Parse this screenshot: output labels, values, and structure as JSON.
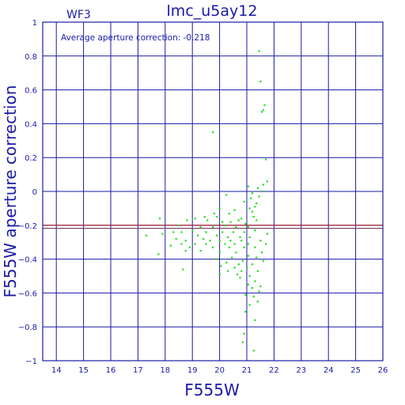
{
  "colors": {
    "axis": "#1a1aa6",
    "points": "#22dd22",
    "ref_line_1": "#b22222",
    "ref_line_2": "#7a4a6a"
  },
  "chart_data": {
    "type": "scatter",
    "title": "lmc_u5ay12",
    "chip_label": "WF3",
    "annotation": "Average aperture correction: -0.218",
    "xlabel": "F555W",
    "ylabel": "F555W aperture correction",
    "xlim": [
      13.5,
      26
    ],
    "ylim": [
      -1,
      1
    ],
    "grid": true,
    "x_ticks": [
      14,
      15,
      16,
      17,
      18,
      19,
      20,
      21,
      22,
      23,
      24,
      25,
      26
    ],
    "y_ticks": [
      -1,
      -0.8,
      -0.6,
      -0.4,
      -0.2,
      0,
      0.2,
      0.4,
      0.6,
      0.8,
      1
    ],
    "x_tick_labels": [
      "14",
      "15",
      "16",
      "17",
      "18",
      "19",
      "20",
      "21",
      "22",
      "23",
      "24",
      "25",
      "26"
    ],
    "y_tick_labels": [
      "−1",
      "−0.8",
      "−0.6",
      "−0.4",
      "−0.2",
      "0",
      "0.2",
      "0.4",
      "0.6",
      "0.8",
      "1"
    ],
    "reference_lines": [
      -0.2,
      -0.218
    ],
    "points": [
      [
        21.45,
        0.83
      ],
      [
        21.5,
        0.65
      ],
      [
        21.65,
        0.51
      ],
      [
        21.6,
        0.48
      ],
      [
        21.55,
        0.47
      ],
      [
        19.75,
        0.35
      ],
      [
        21.7,
        0.19
      ],
      [
        21.75,
        0.06
      ],
      [
        21.6,
        0.04
      ],
      [
        21.05,
        0.03
      ],
      [
        21.4,
        0.02
      ],
      [
        21.55,
        0.0
      ],
      [
        21.2,
        -0.01
      ],
      [
        21.45,
        -0.03
      ],
      [
        21.15,
        -0.04
      ],
      [
        20.25,
        -0.02
      ],
      [
        20.9,
        -0.06
      ],
      [
        21.35,
        -0.07
      ],
      [
        21.3,
        -0.09
      ],
      [
        21.1,
        -0.1
      ],
      [
        21.2,
        -0.12
      ],
      [
        20.0,
        -0.1
      ],
      [
        20.55,
        -0.11
      ],
      [
        20.35,
        -0.13
      ],
      [
        19.8,
        -0.13
      ],
      [
        19.9,
        -0.15
      ],
      [
        19.45,
        -0.15
      ],
      [
        20.8,
        -0.16
      ],
      [
        21.25,
        -0.15
      ],
      [
        19.1,
        -0.16
      ],
      [
        18.8,
        -0.17
      ],
      [
        17.8,
        -0.16
      ],
      [
        18.5,
        -0.2
      ],
      [
        19.55,
        -0.17
      ],
      [
        20.1,
        -0.18
      ],
      [
        20.4,
        -0.18
      ],
      [
        20.7,
        -0.17
      ],
      [
        20.95,
        -0.19
      ],
      [
        21.35,
        -0.17
      ],
      [
        20.2,
        -0.2
      ],
      [
        19.3,
        -0.21
      ],
      [
        19.75,
        -0.21
      ],
      [
        20.6,
        -0.21
      ],
      [
        21.05,
        -0.21
      ],
      [
        21.3,
        -0.23
      ],
      [
        19.0,
        -0.23
      ],
      [
        19.5,
        -0.24
      ],
      [
        20.1,
        -0.24
      ],
      [
        20.5,
        -0.24
      ],
      [
        20.9,
        -0.24
      ],
      [
        18.3,
        -0.24
      ],
      [
        18.6,
        -0.24
      ],
      [
        17.3,
        -0.26
      ],
      [
        17.9,
        -0.25
      ],
      [
        19.2,
        -0.26
      ],
      [
        19.9,
        -0.26
      ],
      [
        20.3,
        -0.27
      ],
      [
        20.75,
        -0.27
      ],
      [
        21.1,
        -0.27
      ],
      [
        21.75,
        -0.25
      ],
      [
        18.4,
        -0.28
      ],
      [
        18.75,
        -0.29
      ],
      [
        19.4,
        -0.28
      ],
      [
        19.65,
        -0.29
      ],
      [
        20.0,
        -0.29
      ],
      [
        20.4,
        -0.29
      ],
      [
        20.8,
        -0.29
      ],
      [
        21.5,
        -0.29
      ],
      [
        18.6,
        -0.31
      ],
      [
        19.1,
        -0.31
      ],
      [
        19.5,
        -0.31
      ],
      [
        20.2,
        -0.31
      ],
      [
        20.55,
        -0.31
      ],
      [
        21.05,
        -0.31
      ],
      [
        21.7,
        -0.31
      ],
      [
        18.2,
        -0.32
      ],
      [
        18.9,
        -0.33
      ],
      [
        19.75,
        -0.33
      ],
      [
        20.35,
        -0.33
      ],
      [
        20.9,
        -0.33
      ],
      [
        21.3,
        -0.33
      ],
      [
        18.75,
        -0.35
      ],
      [
        19.3,
        -0.35
      ],
      [
        20.0,
        -0.36
      ],
      [
        20.6,
        -0.36
      ],
      [
        21.55,
        -0.36
      ],
      [
        17.75,
        -0.37
      ],
      [
        21.05,
        -0.38
      ],
      [
        21.35,
        -0.39
      ],
      [
        20.45,
        -0.39
      ],
      [
        19.9,
        -0.4
      ],
      [
        20.85,
        -0.41
      ],
      [
        21.6,
        -0.41
      ],
      [
        20.25,
        -0.42
      ],
      [
        20.7,
        -0.43
      ],
      [
        21.2,
        -0.43
      ],
      [
        20.05,
        -0.44
      ],
      [
        20.55,
        -0.45
      ],
      [
        21.0,
        -0.45
      ],
      [
        18.65,
        -0.46
      ],
      [
        20.3,
        -0.47
      ],
      [
        20.8,
        -0.47
      ],
      [
        21.4,
        -0.47
      ],
      [
        20.0,
        -0.49
      ],
      [
        20.65,
        -0.49
      ],
      [
        21.1,
        -0.5
      ],
      [
        20.75,
        -0.51
      ],
      [
        21.3,
        -0.53
      ],
      [
        21.05,
        -0.55
      ],
      [
        21.5,
        -0.56
      ],
      [
        21.2,
        -0.57
      ],
      [
        21.45,
        -0.59
      ],
      [
        20.95,
        -0.61
      ],
      [
        21.25,
        -0.62
      ],
      [
        21.4,
        -0.65
      ],
      [
        21.1,
        -0.67
      ],
      [
        20.95,
        -0.71
      ],
      [
        21.3,
        -0.76
      ],
      [
        20.9,
        -0.84
      ],
      [
        20.85,
        -0.89
      ],
      [
        21.25,
        -0.94
      ]
    ]
  }
}
